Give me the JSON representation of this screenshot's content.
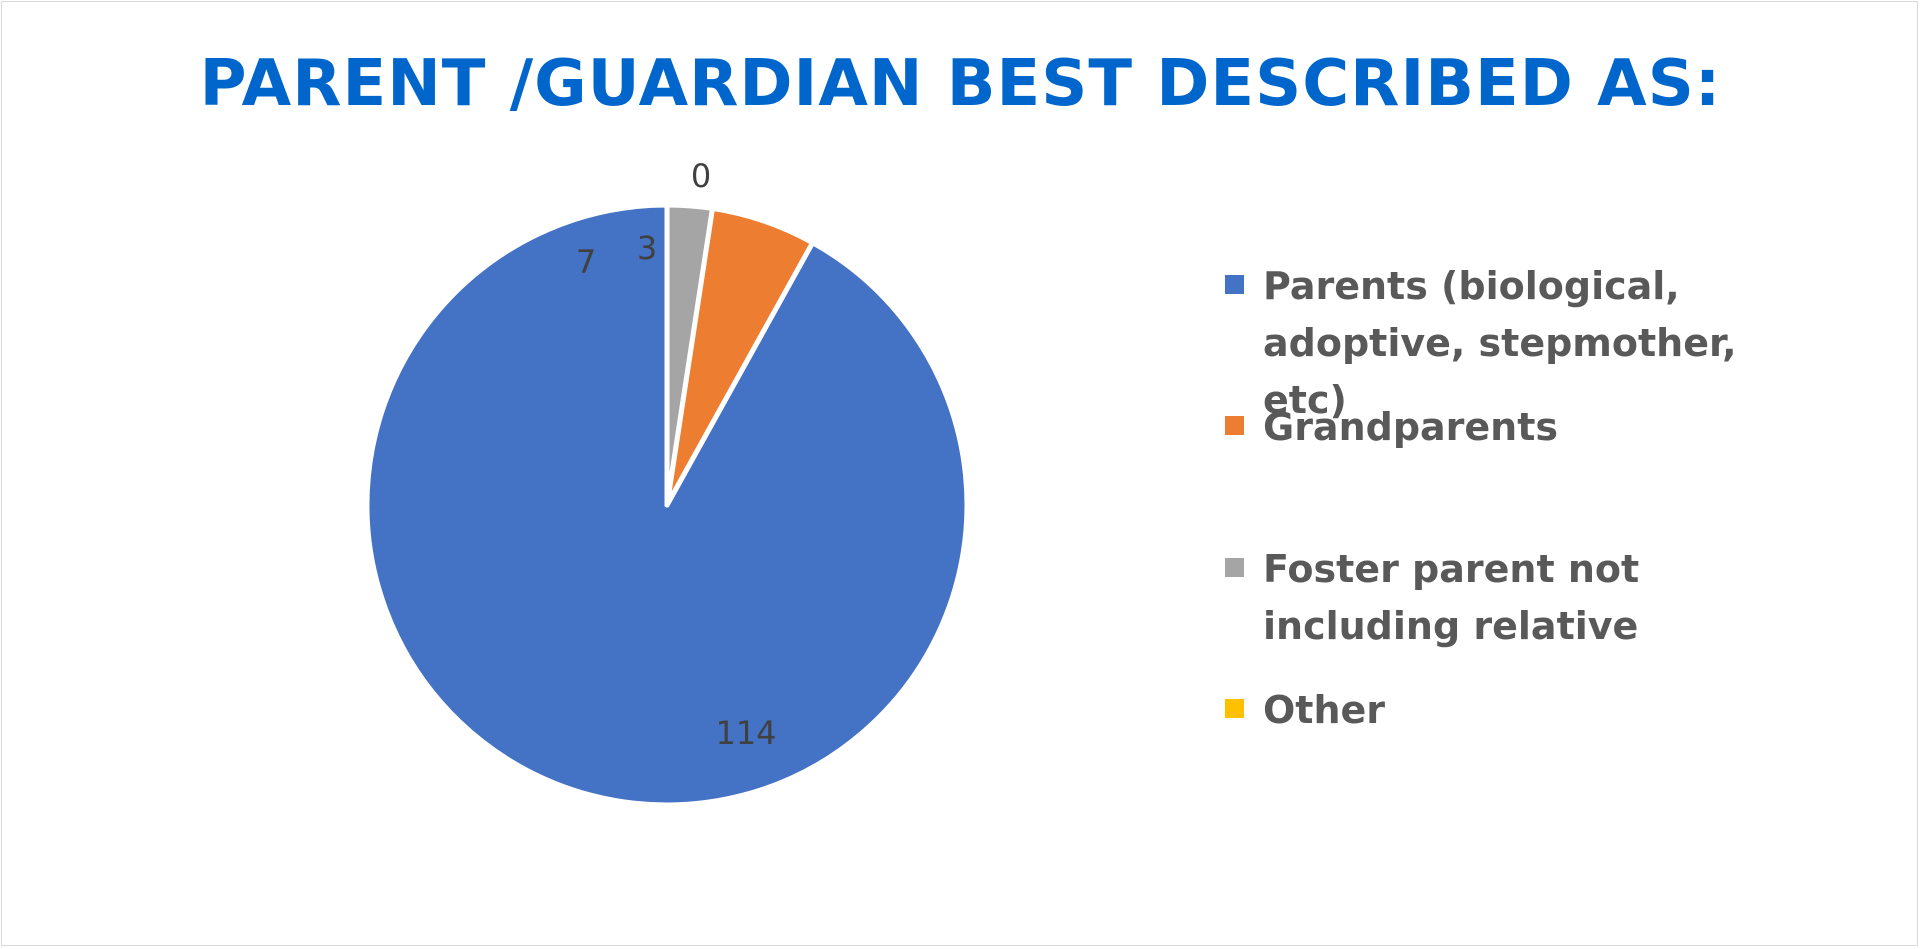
{
  "chart_data": {
    "type": "pie",
    "title": "PARENT /GUARDIAN BEST DESCRIBED AS:",
    "categories": [
      "Parents (biological, adoptive, stepmother, etc)",
      "Grandparents",
      "Foster parent not including relative",
      "Other"
    ],
    "values": [
      114,
      7,
      3,
      0
    ],
    "data_labels": [
      "114",
      "7",
      "3",
      "0"
    ],
    "colors": [
      "#4472C4",
      "#ED7D31",
      "#A5A5A5",
      "#FFC000"
    ],
    "title_color": "#0066CC",
    "label_color": "#404040",
    "legend_text_color": "#595959",
    "legend_position": "right",
    "start_angle_deg": 0,
    "direction": "counterclockwise"
  }
}
